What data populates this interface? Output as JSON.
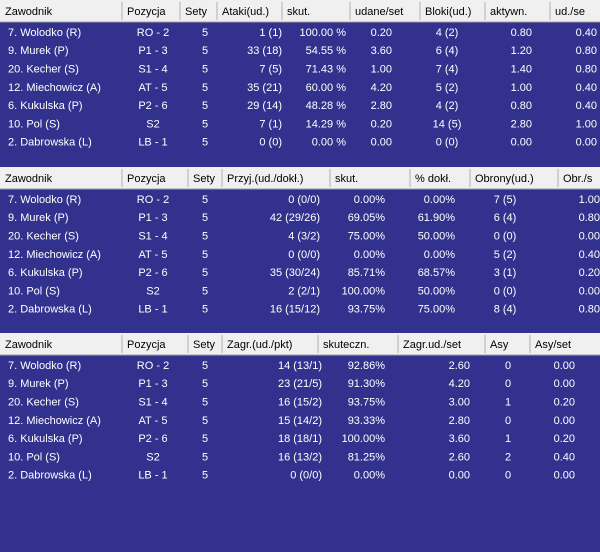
{
  "tables": [
    {
      "header": [
        "Zawodnik",
        "Pozycja",
        "Sety",
        "Ataki(ud.)",
        "skut.",
        "udane/set",
        "Bloki(ud.)",
        "aktywn.",
        "ud./se"
      ],
      "rows": [
        [
          "7. Wolodko (R)",
          "RO - 2",
          "5",
          "1 (1)",
          "100.00 %",
          "0.20",
          "4 (2)",
          "0.80",
          "0.40"
        ],
        [
          "9. Murek (P)",
          "P1 - 3",
          "5",
          "33 (18)",
          "54.55 %",
          "3.60",
          "6 (4)",
          "1.20",
          "0.80"
        ],
        [
          "20. Kecher (S)",
          "S1 - 4",
          "5",
          "7 (5)",
          "71.43 %",
          "1.00",
          "7 (4)",
          "1.40",
          "0.80"
        ],
        [
          "12. Miechowicz (A)",
          "AT - 5",
          "5",
          "35 (21)",
          "60.00 %",
          "4.20",
          "5 (2)",
          "1.00",
          "0.40"
        ],
        [
          "6. Kukulska (P)",
          "P2 - 6",
          "5",
          "29 (14)",
          "48.28 %",
          "2.80",
          "4 (2)",
          "0.80",
          "0.40"
        ],
        [
          "10. Pol (S)",
          "S2",
          "5",
          "7 (1)",
          "14.29 %",
          "0.20",
          "14 (5)",
          "2.80",
          "1.00"
        ],
        [
          "2. Dabrowska (L)",
          "LB - 1",
          "5",
          "0 (0)",
          "0.00 %",
          "0.00",
          "0 (0)",
          "0.00",
          "0.00"
        ]
      ]
    },
    {
      "header": [
        "Zawodnik",
        "Pozycja",
        "Sety",
        "Przyj.(ud./dokł.)",
        "skut.",
        "% dokł.",
        "Obrony(ud.)",
        "Obr./s"
      ],
      "rows": [
        [
          "7. Wolodko (R)",
          "RO - 2",
          "5",
          "0 (0/0)",
          "0.00%",
          "0.00%",
          "7 (5)",
          "1.00"
        ],
        [
          "9. Murek (P)",
          "P1 - 3",
          "5",
          "42 (29/26)",
          "69.05%",
          "61.90%",
          "6 (4)",
          "0.80"
        ],
        [
          "20. Kecher (S)",
          "S1 - 4",
          "5",
          "4 (3/2)",
          "75.00%",
          "50.00%",
          "0 (0)",
          "0.00"
        ],
        [
          "12. Miechowicz (A)",
          "AT - 5",
          "5",
          "0 (0/0)",
          "0.00%",
          "0.00%",
          "5 (2)",
          "0.40"
        ],
        [
          "6. Kukulska (P)",
          "P2 - 6",
          "5",
          "35 (30/24)",
          "85.71%",
          "68.57%",
          "3 (1)",
          "0.20"
        ],
        [
          "10. Pol (S)",
          "S2",
          "5",
          "2 (2/1)",
          "100.00%",
          "50.00%",
          "0 (0)",
          "0.00"
        ],
        [
          "2. Dabrowska (L)",
          "LB - 1",
          "5",
          "16 (15/12)",
          "93.75%",
          "75.00%",
          "8 (4)",
          "0.80"
        ]
      ]
    },
    {
      "header": [
        "Zawodnik",
        "Pozycja",
        "Sety",
        "Zagr.(ud./pkt)",
        "skuteczn.",
        "Zagr.ud./set",
        "Asy",
        "Asy/set"
      ],
      "rows": [
        [
          "7. Wolodko (R)",
          "RO - 2",
          "5",
          "14 (13/1)",
          "92.86%",
          "2.60",
          "0",
          "0.00"
        ],
        [
          "9. Murek (P)",
          "P1 - 3",
          "5",
          "23 (21/5)",
          "91.30%",
          "4.20",
          "0",
          "0.00"
        ],
        [
          "20. Kecher (S)",
          "S1 - 4",
          "5",
          "16 (15/2)",
          "93.75%",
          "3.00",
          "1",
          "0.20"
        ],
        [
          "12. Miechowicz (A)",
          "AT - 5",
          "5",
          "15 (14/2)",
          "93.33%",
          "2.80",
          "0",
          "0.00"
        ],
        [
          "6. Kukulska (P)",
          "P2 - 6",
          "5",
          "18 (18/1)",
          "100.00%",
          "3.60",
          "1",
          "0.20"
        ],
        [
          "10. Pol (S)",
          "S2",
          "5",
          "16 (13/2)",
          "81.25%",
          "2.60",
          "2",
          "0.40"
        ],
        [
          "2. Dabrowska (L)",
          "LB - 1",
          "5",
          "0 (0/0)",
          "0.00%",
          "0.00",
          "0",
          "0.00"
        ]
      ]
    }
  ]
}
